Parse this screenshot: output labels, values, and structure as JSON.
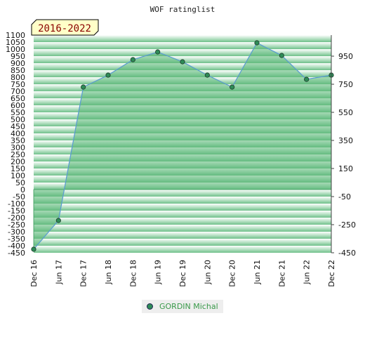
{
  "chart_data": {
    "type": "area",
    "title": "WOF ratinglist",
    "badge": "2016-2022",
    "x": [
      "Dec 16",
      "Jun 17",
      "Dec 17",
      "Jun 18",
      "Dec 18",
      "Jun 19",
      "Dec 19",
      "Jun 20",
      "Dec 20",
      "Jun 21",
      "Dec 21",
      "Jun 22",
      "Dec 22"
    ],
    "series": [
      {
        "name": "GORDIN Michal",
        "values": [
          -425,
          -220,
          730,
          815,
          925,
          980,
          910,
          815,
          730,
          1045,
          955,
          785,
          815
        ]
      }
    ],
    "y_left_ticks": [
      1100,
      1050,
      1000,
      950,
      900,
      850,
      800,
      750,
      700,
      650,
      600,
      550,
      500,
      450,
      400,
      350,
      300,
      250,
      200,
      150,
      100,
      50,
      0,
      -50,
      -100,
      -150,
      -200,
      -250,
      -300,
      -350,
      -400,
      -450
    ],
    "y_right_ticks": [
      950,
      750,
      550,
      350,
      150,
      -50,
      -250,
      -450
    ],
    "ylim": [
      -450,
      1100
    ],
    "colors": {
      "fill": "#5bb879",
      "line": "#5b9bd5",
      "marker": "#2e8b57",
      "bandLight": "#ffffff",
      "bandDark": "#7cc596",
      "badgeBg": "#ffffc8"
    },
    "legend_position": "bottom-center"
  }
}
